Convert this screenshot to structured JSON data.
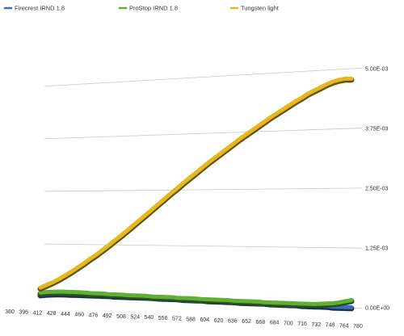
{
  "chart_data": {
    "type": "line",
    "title": "",
    "xlabel": "",
    "ylabel": "",
    "legend_position": "top-left",
    "grid": true,
    "ylim": [
      0,
      0.005
    ],
    "y_ticks": [
      "0.00E+00",
      "1.25E-03",
      "2.50E-03",
      "3.75E-03",
      "5.00E-03"
    ],
    "y_tick_values": [
      0,
      0.00125,
      0.0025,
      0.00375,
      0.005
    ],
    "x_start": 380,
    "x_step": 8,
    "x_count": 51,
    "x_tick_labels": [
      "380",
      "396",
      "412",
      "428",
      "444",
      "460",
      "476",
      "492",
      "508",
      "524",
      "540",
      "556",
      "572",
      "588",
      "604",
      "620",
      "636",
      "652",
      "668",
      "684",
      "700",
      "716",
      "732",
      "748",
      "764",
      "780"
    ],
    "series": [
      {
        "name": "Firecrest IRND 1.8",
        "color": "#3a6fc0",
        "values": [
          5e-05,
          7e-05,
          8e-05,
          9e-05,
          9e-05,
          9e-05,
          9e-05,
          9e-05,
          9e-05,
          9e-05,
          9e-05,
          9e-05,
          8e-05,
          8e-05,
          8e-05,
          8e-05,
          8e-05,
          8e-05,
          8e-05,
          7e-05,
          7e-05,
          7e-05,
          7e-05,
          6e-05,
          6e-05,
          6e-05,
          6e-05,
          5e-05,
          5e-05,
          5e-05,
          5e-05,
          5e-05,
          4e-05,
          4e-05,
          4e-05,
          4e-05,
          4e-05,
          3e-05,
          3e-05,
          3e-05,
          3e-05,
          3e-05,
          2e-05,
          2e-05,
          2e-05,
          2e-05,
          2e-05,
          1e-05,
          1e-05,
          1e-05,
          1e-05
        ]
      },
      {
        "name": "ProStop IRND 1.8",
        "color": "#5fb135",
        "values": [
          9e-05,
          0.00011,
          0.00012,
          0.00013,
          0.00013,
          0.00013,
          0.00013,
          0.00013,
          0.00012,
          0.00012,
          0.00012,
          0.00011,
          0.00011,
          0.00011,
          0.0001,
          0.0001,
          0.0001,
          0.0001,
          9e-05,
          9e-05,
          9e-05,
          9e-05,
          8e-05,
          8e-05,
          8e-05,
          8e-05,
          7e-05,
          7e-05,
          7e-05,
          7e-05,
          7e-05,
          6e-05,
          6e-05,
          6e-05,
          6e-05,
          6e-05,
          5e-05,
          5e-05,
          5e-05,
          5e-05,
          5e-05,
          5e-05,
          5e-05,
          5e-05,
          5e-05,
          6e-05,
          7e-05,
          8e-05,
          0.0001,
          0.00013,
          0.00016
        ]
      },
      {
        "name": "Tungsten light",
        "color": "#e6b81f",
        "values": [
          0.00021,
          0.00028,
          0.00035,
          0.00043,
          0.00052,
          0.00061,
          0.00071,
          0.00081,
          0.00092,
          0.00102,
          0.00113,
          0.00124,
          0.00136,
          0.00147,
          0.00159,
          0.00171,
          0.00183,
          0.00195,
          0.00207,
          0.00219,
          0.00231,
          0.00243,
          0.00254,
          0.00266,
          0.00277,
          0.00288,
          0.00299,
          0.0031,
          0.0032,
          0.0033,
          0.0034,
          0.0035,
          0.0036,
          0.00369,
          0.00378,
          0.00387,
          0.00396,
          0.00405,
          0.00413,
          0.00421,
          0.00429,
          0.00437,
          0.00444,
          0.00452,
          0.00458,
          0.00464,
          0.0047,
          0.00475,
          0.00478,
          0.0048,
          0.00479
        ]
      }
    ]
  }
}
